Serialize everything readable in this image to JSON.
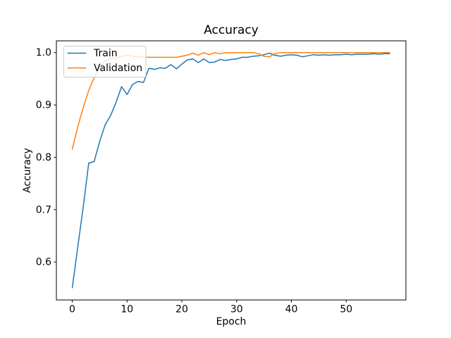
{
  "chart_data": {
    "type": "line",
    "title": "Accuracy",
    "xlabel": "Epoch",
    "ylabel": "Accuracy",
    "xlim": [
      -2.9,
      60.9
    ],
    "ylim": [
      0.5275,
      1.0225
    ],
    "xticks": [
      0,
      10,
      20,
      30,
      40,
      50
    ],
    "xtick_labels": [
      "0",
      "10",
      "20",
      "30",
      "40",
      "50"
    ],
    "yticks": [
      0.6,
      0.7,
      0.8,
      0.9,
      1.0
    ],
    "ytick_labels": [
      "0.6",
      "0.7",
      "0.8",
      "0.9",
      "1.0"
    ],
    "grid": false,
    "legend": {
      "position": "upper left",
      "entries": [
        "Train",
        "Validation"
      ]
    },
    "epochs": [
      0,
      1,
      2,
      3,
      4,
      5,
      6,
      7,
      8,
      9,
      10,
      11,
      12,
      13,
      14,
      15,
      16,
      17,
      18,
      19,
      20,
      21,
      22,
      23,
      24,
      25,
      26,
      27,
      28,
      29,
      30,
      31,
      32,
      33,
      34,
      35,
      36,
      37,
      38,
      39,
      40,
      41,
      42,
      43,
      44,
      45,
      46,
      47,
      48,
      49,
      50,
      51,
      52,
      53,
      54,
      55,
      56,
      57,
      58
    ],
    "series": [
      {
        "name": "Train",
        "color": "#1f77b4",
        "values": [
          0.55,
          0.628,
          0.705,
          0.789,
          0.792,
          0.83,
          0.862,
          0.88,
          0.905,
          0.935,
          0.92,
          0.939,
          0.945,
          0.943,
          0.97,
          0.968,
          0.971,
          0.97,
          0.977,
          0.969,
          0.978,
          0.986,
          0.988,
          0.981,
          0.988,
          0.981,
          0.982,
          0.987,
          0.985,
          0.987,
          0.988,
          0.991,
          0.991,
          0.993,
          0.994,
          0.996,
          0.999,
          0.995,
          0.993,
          0.995,
          0.996,
          0.995,
          0.992,
          0.994,
          0.996,
          0.995,
          0.996,
          0.995,
          0.996,
          0.996,
          0.997,
          0.996,
          0.997,
          0.997,
          0.997,
          0.998,
          0.997,
          0.998,
          0.998
        ]
      },
      {
        "name": "Validation",
        "color": "#ff7f0e",
        "values": [
          0.815,
          0.858,
          0.895,
          0.928,
          0.952,
          0.972,
          0.985,
          0.988,
          0.99,
          0.993,
          0.995,
          0.993,
          0.992,
          0.991,
          0.991,
          0.991,
          0.991,
          0.991,
          0.991,
          0.991,
          0.993,
          0.995,
          0.999,
          0.995,
          1.0,
          0.996,
          1.0,
          0.998,
          1.0,
          1.0,
          1.0,
          1.0,
          1.0,
          1.0,
          0.998,
          0.993,
          0.992,
          0.998,
          1.0,
          1.0,
          1.0,
          1.0,
          1.0,
          1.0,
          1.0,
          1.0,
          1.0,
          1.0,
          1.0,
          1.0,
          1.0,
          1.0,
          1.0,
          1.0,
          1.0,
          1.0,
          1.0,
          1.0,
          1.0
        ]
      }
    ],
    "colors": {
      "spine": "#000000",
      "text": "#000000",
      "legend_border": "#cccccc",
      "legend_bg": "#ffffff"
    }
  }
}
